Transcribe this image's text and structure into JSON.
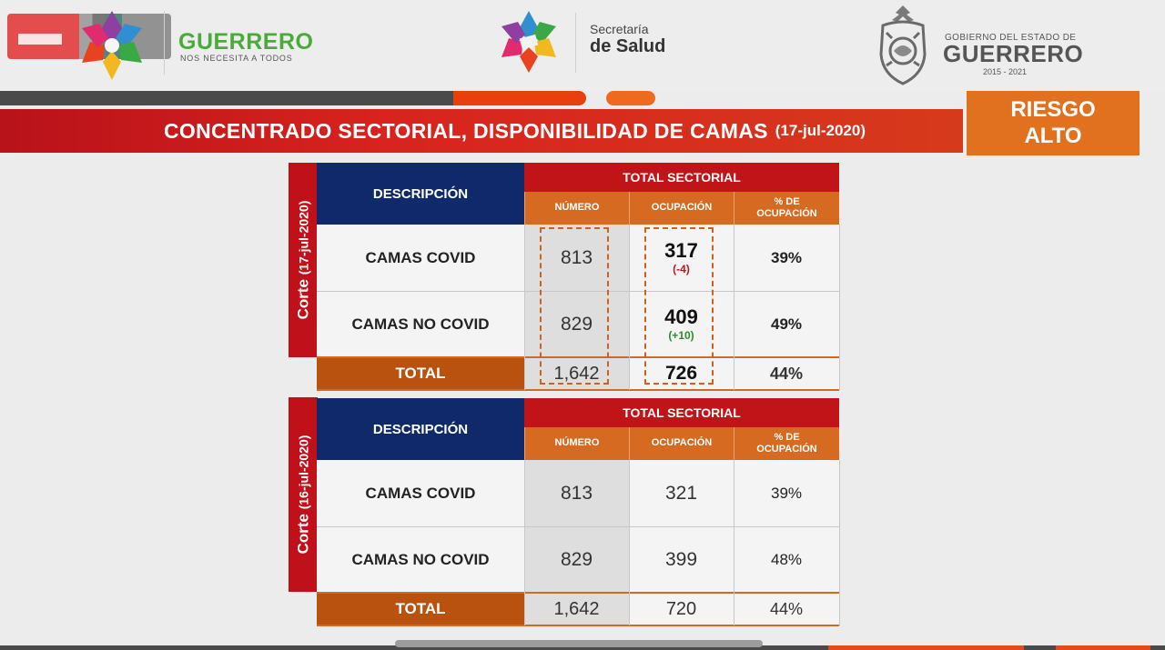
{
  "header": {
    "guerrero_name": "GUERRERO",
    "guerrero_tagline": "NOS NECESITA A TODOS",
    "salud_line1": "Secretaría",
    "salud_line2": "de Salud",
    "gobierno_line1": "GOBIERNO DEL ESTADO DE",
    "gobierno_line2": "GUERRERO",
    "gobierno_years": "2015 - 2021"
  },
  "title": {
    "text": "CONCENTRADO SECTORIAL, DISPONIBILIDAD DE CAMAS",
    "date": "(17-jul-2020)"
  },
  "risk": {
    "line1": "RIESGO",
    "line2": "ALTO"
  },
  "colors": {
    "brand_red": "#c11419",
    "navy": "#10296b",
    "orange": "#d56a20",
    "risk_orange": "#e2711f",
    "guerrero_green": "#4aaa3a"
  },
  "table_current": {
    "cut_prefix": "Corte",
    "cut_date": "(17-jul-2020)",
    "desc_header": "DESCRIPCIÓN",
    "total_header": "TOTAL SECTORIAL",
    "col_numero": "NÚMERO",
    "col_ocupacion": "OCUPACIÓN",
    "col_pct_line1": "% DE",
    "col_pct_line2": "OCUPACIÓN",
    "rows": [
      {
        "label": "CAMAS COVID",
        "numero": "813",
        "ocupacion": "317",
        "delta": "(-4)",
        "pct": "39%"
      },
      {
        "label": "CAMAS NO COVID",
        "numero": "829",
        "ocupacion": "409",
        "delta": "(+10)",
        "pct": "49%"
      }
    ],
    "total": {
      "label": "TOTAL",
      "numero": "1,642",
      "ocupacion": "726",
      "pct": "44%"
    }
  },
  "table_previous": {
    "cut_prefix": "Corte",
    "cut_date": "(16-jul-2020)",
    "desc_header": "DESCRIPCIÓN",
    "total_header": "TOTAL SECTORIAL",
    "col_numero": "NÚMERO",
    "col_ocupacion": "OCUPACIÓN",
    "col_pct_line1": "% DE",
    "col_pct_line2": "OCUPACIÓN",
    "rows": [
      {
        "label": "CAMAS COVID",
        "numero": "813",
        "ocupacion": "321",
        "pct": "39%"
      },
      {
        "label": "CAMAS NO COVID",
        "numero": "829",
        "ocupacion": "399",
        "pct": "48%"
      }
    ],
    "total": {
      "label": "TOTAL",
      "numero": "1,642",
      "ocupacion": "720",
      "pct": "44%"
    }
  }
}
